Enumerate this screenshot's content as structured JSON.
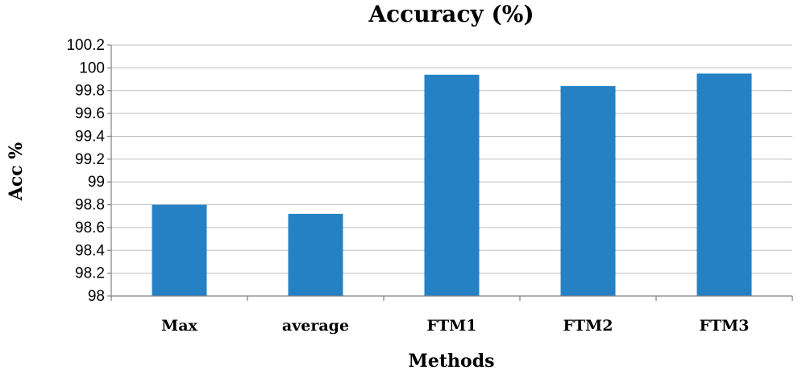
{
  "chart_data": {
    "type": "bar",
    "title": "Accuracy (%)",
    "xlabel": "Methods",
    "ylabel": "Acc %",
    "categories": [
      "Max",
      "average",
      "FTM1",
      "FTM2",
      "FTM3"
    ],
    "values": [
      98.8,
      98.72,
      99.94,
      99.84,
      99.95
    ],
    "ylim": [
      98,
      100.2
    ],
    "yticks": [
      "98",
      "98.2",
      "98.4",
      "98.6",
      "98.8",
      "99",
      "99.2",
      "99.4",
      "99.6",
      "99.8",
      "100",
      "100.2"
    ],
    "grid": true,
    "legend": "none",
    "bar_color": "#2581c4"
  }
}
